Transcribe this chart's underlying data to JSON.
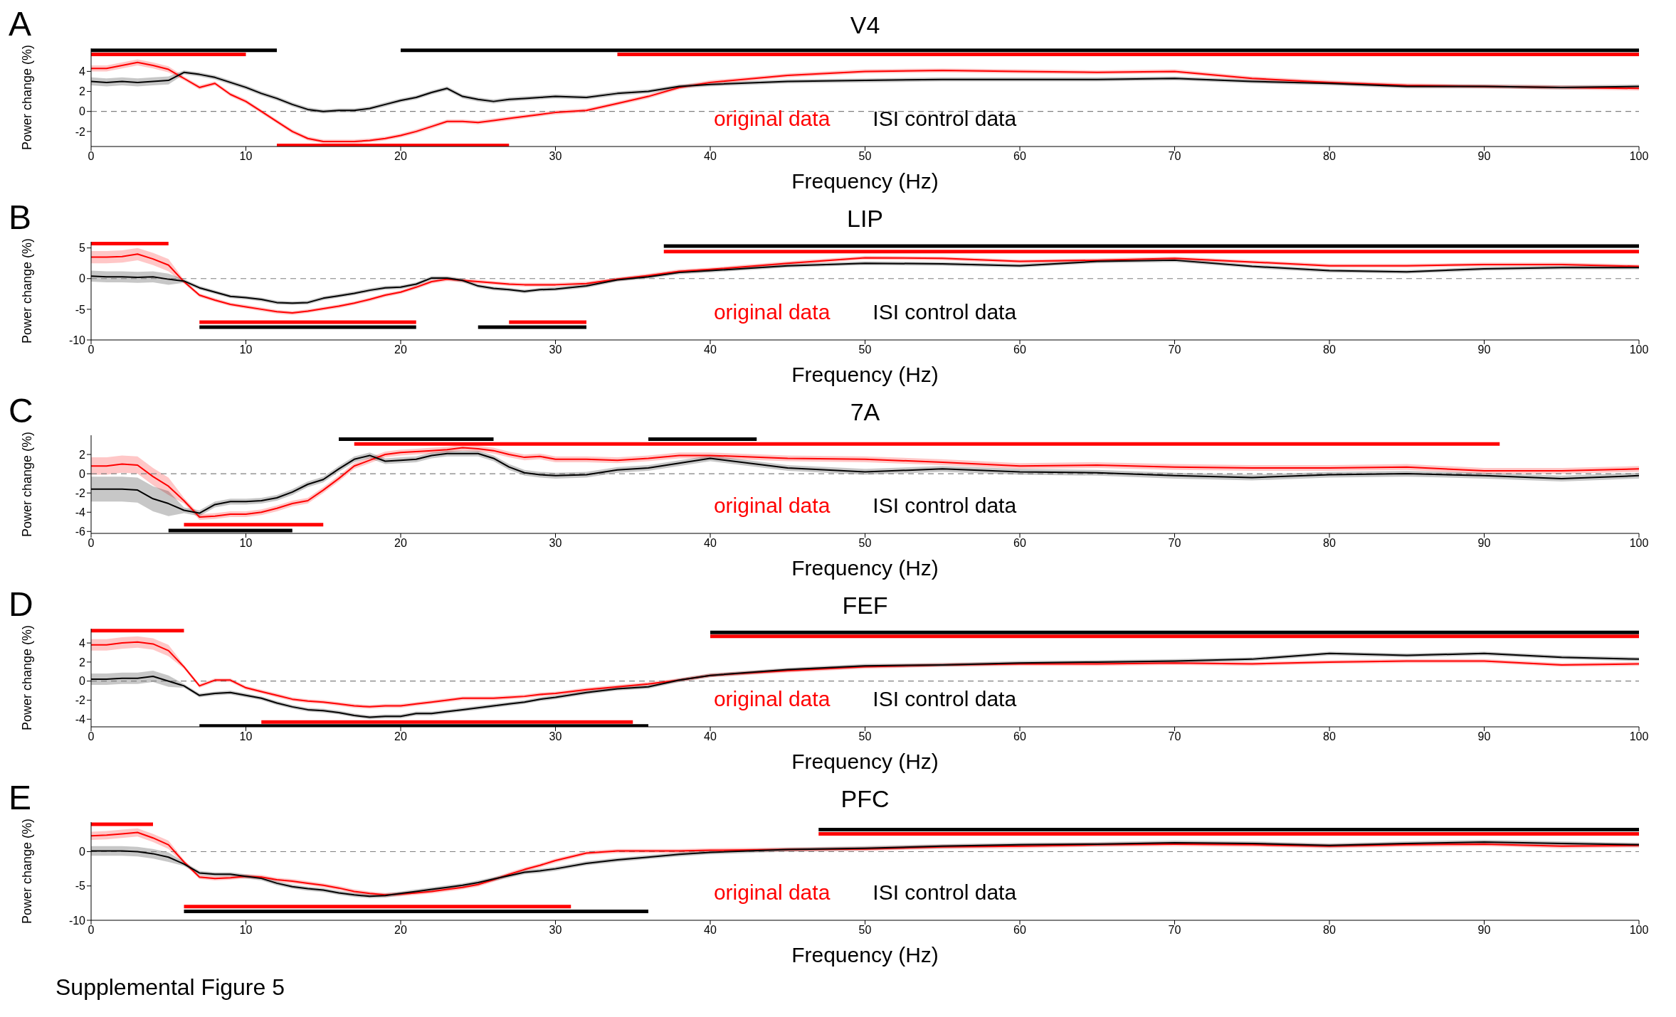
{
  "chart_data": [
    {
      "type": "line",
      "title": "V4",
      "xlabel": "Frequency (Hz)",
      "ylabel": "Power change (%)",
      "annotations": [
        "A"
      ],
      "legend": "bottom",
      "xlim": [
        0,
        100
      ],
      "xticks": [
        0,
        10,
        20,
        30,
        40,
        50,
        60,
        70,
        80,
        90,
        100
      ],
      "ylim": [
        -3.5,
        6.3
      ],
      "yticks": [
        -2,
        0,
        2,
        4
      ],
      "grid": false,
      "ref_lines": [
        {
          "axis": "y",
          "value": 0,
          "color": "#808080",
          "line_style": "dashed"
        }
      ],
      "x": [
        0,
        1,
        2,
        3,
        4,
        5,
        6,
        7,
        8,
        9,
        10,
        11,
        12,
        13,
        14,
        15,
        16,
        17,
        18,
        19,
        20,
        21,
        22,
        23,
        24,
        25,
        26,
        27,
        28,
        29,
        30,
        32,
        34,
        36,
        38,
        40,
        45,
        50,
        55,
        60,
        65,
        70,
        75,
        80,
        85,
        90,
        95,
        100
      ],
      "series": [
        {
          "name": "original data",
          "color": "#ff0000",
          "values": [
            4.3,
            4.3,
            4.6,
            4.9,
            4.6,
            4.2,
            3.3,
            2.4,
            2.8,
            1.7,
            1.0,
            0.0,
            -1.0,
            -2.0,
            -2.7,
            -3.0,
            -3.0,
            -3.0,
            -2.9,
            -2.7,
            -2.4,
            -2.0,
            -1.5,
            -1.0,
            -1.0,
            -1.1,
            -0.9,
            -0.7,
            -0.5,
            -0.3,
            -0.1,
            0.1,
            0.8,
            1.5,
            2.4,
            2.9,
            3.6,
            4.0,
            4.1,
            4.0,
            3.9,
            4.0,
            3.3,
            2.9,
            2.6,
            2.5,
            2.4,
            2.3
          ],
          "lower": [
            4.0,
            4.0,
            4.3,
            4.6,
            4.3,
            3.9,
            3.1,
            2.2,
            2.6,
            1.5,
            0.8,
            -0.2,
            -1.2,
            -2.2,
            -2.9,
            -3.2,
            -3.2,
            -3.2,
            -3.1,
            -2.9,
            -2.6,
            -2.2,
            -1.7,
            -1.2,
            -1.2,
            -1.3,
            -1.1,
            -0.9,
            -0.7,
            -0.5,
            -0.3,
            -0.1,
            0.6,
            1.3,
            2.2,
            2.7,
            3.4,
            3.8,
            3.9,
            3.8,
            3.7,
            3.8,
            3.1,
            2.7,
            2.4,
            2.3,
            2.2,
            2.1
          ],
          "upper": [
            4.6,
            4.6,
            4.9,
            5.2,
            4.9,
            4.5,
            3.5,
            2.6,
            3.0,
            1.9,
            1.2,
            0.2,
            -0.8,
            -1.8,
            -2.5,
            -2.8,
            -2.8,
            -2.8,
            -2.7,
            -2.5,
            -2.2,
            -1.8,
            -1.3,
            -0.8,
            -0.8,
            -0.9,
            -0.7,
            -0.5,
            -0.3,
            -0.1,
            0.1,
            0.3,
            1.0,
            1.7,
            2.6,
            3.1,
            3.8,
            4.2,
            4.3,
            4.2,
            4.1,
            4.2,
            3.5,
            3.1,
            2.8,
            2.7,
            2.6,
            2.5
          ]
        },
        {
          "name": "ISI control data",
          "color": "#000000",
          "values": [
            3.0,
            2.9,
            3.0,
            2.9,
            3.0,
            3.1,
            3.9,
            3.7,
            3.4,
            2.9,
            2.4,
            1.8,
            1.3,
            0.7,
            0.2,
            0.0,
            0.1,
            0.1,
            0.3,
            0.7,
            1.1,
            1.4,
            1.9,
            2.3,
            1.5,
            1.2,
            1.0,
            1.2,
            1.3,
            1.4,
            1.5,
            1.4,
            1.8,
            2.0,
            2.5,
            2.7,
            3.0,
            3.1,
            3.2,
            3.2,
            3.2,
            3.3,
            3.0,
            2.8,
            2.5,
            2.5,
            2.4,
            2.5
          ],
          "lower": [
            2.6,
            2.5,
            2.6,
            2.5,
            2.6,
            2.7,
            3.7,
            3.5,
            3.2,
            2.7,
            2.2,
            1.6,
            1.1,
            0.5,
            0.0,
            -0.2,
            -0.1,
            -0.1,
            0.1,
            0.5,
            0.9,
            1.2,
            1.7,
            2.1,
            1.3,
            1.0,
            0.8,
            1.0,
            1.1,
            1.2,
            1.3,
            1.2,
            1.6,
            1.8,
            2.3,
            2.5,
            2.8,
            2.9,
            3.0,
            3.0,
            3.0,
            3.1,
            2.8,
            2.6,
            2.3,
            2.3,
            2.2,
            2.3
          ],
          "upper": [
            3.4,
            3.3,
            3.4,
            3.3,
            3.4,
            3.5,
            4.1,
            3.9,
            3.6,
            3.1,
            2.6,
            2.0,
            1.5,
            0.9,
            0.4,
            0.2,
            0.3,
            0.3,
            0.5,
            0.9,
            1.3,
            1.6,
            2.1,
            2.5,
            1.7,
            1.4,
            1.2,
            1.4,
            1.5,
            1.6,
            1.7,
            1.6,
            2.0,
            2.2,
            2.7,
            2.9,
            3.2,
            3.3,
            3.4,
            3.4,
            3.4,
            3.5,
            3.2,
            3.0,
            2.7,
            2.7,
            2.6,
            2.7
          ]
        },
        {
          "type": "line",
          "color": "#000000",
          "x": [
            0,
            12
          ],
          "values": [
            6.1,
            6.1
          ]
        },
        {
          "type": "line",
          "color": "#000000",
          "x": [
            20,
            100
          ],
          "values": [
            6.1,
            6.1
          ]
        },
        {
          "type": "line",
          "color": "#ff0000",
          "x": [
            0,
            10
          ],
          "values": [
            5.7,
            5.7
          ]
        },
        {
          "type": "line",
          "color": "#ff0000",
          "x": [
            34,
            100
          ],
          "values": [
            5.7,
            5.7
          ]
        },
        {
          "type": "line",
          "color": "#ff0000",
          "x": [
            12,
            27
          ],
          "values": [
            -3.4,
            -3.4
          ]
        }
      ]
    },
    {
      "type": "line",
      "title": "LIP",
      "xlabel": "Frequency (Hz)",
      "ylabel": "Power change (%)",
      "annotations": [
        "B"
      ],
      "legend": "bottom",
      "xlim": [
        0,
        100
      ],
      "xticks": [
        0,
        10,
        20,
        30,
        40,
        50,
        60,
        70,
        80,
        90,
        100
      ],
      "ylim": [
        -10,
        6
      ],
      "yticks": [
        -10,
        -5,
        0,
        5
      ],
      "grid": false,
      "ref_lines": [
        {
          "axis": "y",
          "value": 0,
          "color": "#808080",
          "line_style": "dashed"
        }
      ],
      "x": [
        0,
        1,
        2,
        3,
        4,
        5,
        6,
        7,
        8,
        9,
        10,
        11,
        12,
        13,
        14,
        15,
        16,
        17,
        18,
        19,
        20,
        21,
        22,
        23,
        24,
        25,
        26,
        27,
        28,
        29,
        30,
        32,
        34,
        36,
        38,
        40,
        45,
        50,
        55,
        60,
        65,
        70,
        75,
        80,
        85,
        90,
        95,
        100
      ],
      "series": [
        {
          "name": "original data",
          "color": "#ff0000",
          "values": [
            3.5,
            3.5,
            3.6,
            4.0,
            3.2,
            2.2,
            -0.5,
            -2.7,
            -3.5,
            -4.2,
            -4.6,
            -5.0,
            -5.4,
            -5.6,
            -5.3,
            -4.9,
            -4.5,
            -4.0,
            -3.4,
            -2.7,
            -2.2,
            -1.4,
            -0.5,
            -0.1,
            -0.3,
            -0.5,
            -0.7,
            -0.9,
            -1.0,
            -1.0,
            -1.0,
            -0.8,
            -0.1,
            0.5,
            1.2,
            1.5,
            2.5,
            3.4,
            3.3,
            2.8,
            3.0,
            3.3,
            2.7,
            2.1,
            2.1,
            2.3,
            2.3,
            2.0
          ],
          "lower": [
            2.5,
            2.5,
            2.6,
            3.0,
            2.2,
            1.2,
            -0.8,
            -3.0,
            -3.8,
            -4.5,
            -4.9,
            -5.3,
            -5.7,
            -5.9,
            -5.6,
            -5.2,
            -4.8,
            -4.3,
            -3.7,
            -3.0,
            -2.5,
            -1.7,
            -0.8,
            -0.4,
            -0.6,
            -0.8,
            -1.0,
            -1.2,
            -1.3,
            -1.3,
            -1.3,
            -1.1,
            -0.4,
            0.2,
            0.9,
            1.2,
            2.2,
            3.1,
            3.0,
            2.5,
            2.7,
            3.0,
            2.4,
            1.8,
            1.8,
            2.0,
            2.0,
            1.7
          ],
          "upper": [
            4.5,
            4.5,
            4.6,
            5.0,
            4.2,
            3.2,
            -0.2,
            -2.4,
            -3.2,
            -3.9,
            -4.3,
            -4.7,
            -5.1,
            -5.3,
            -5.0,
            -4.6,
            -4.2,
            -3.7,
            -3.1,
            -2.4,
            -1.9,
            -1.1,
            -0.2,
            0.2,
            0.0,
            -0.2,
            -0.4,
            -0.6,
            -0.7,
            -0.7,
            -0.7,
            -0.5,
            0.2,
            0.8,
            1.5,
            1.8,
            2.8,
            3.7,
            3.6,
            3.1,
            3.3,
            3.6,
            3.0,
            2.4,
            2.4,
            2.6,
            2.6,
            2.3
          ]
        },
        {
          "name": "ISI control data",
          "color": "#000000",
          "values": [
            0.4,
            0.3,
            0.3,
            0.2,
            0.3,
            -0.1,
            -0.4,
            -1.5,
            -2.2,
            -2.9,
            -3.1,
            -3.4,
            -3.9,
            -4.0,
            -3.9,
            -3.2,
            -2.8,
            -2.4,
            -1.9,
            -1.5,
            -1.4,
            -0.9,
            0.1,
            0.1,
            -0.3,
            -1.2,
            -1.6,
            -1.8,
            -2.1,
            -1.8,
            -1.7,
            -1.2,
            -0.2,
            0.3,
            1.0,
            1.3,
            2.1,
            2.5,
            2.4,
            2.1,
            2.8,
            3.0,
            2.0,
            1.3,
            1.1,
            1.6,
            1.8,
            1.8
          ],
          "lower": [
            -0.5,
            -0.6,
            -0.6,
            -0.7,
            -0.6,
            -1.0,
            -0.7,
            -1.8,
            -2.5,
            -3.2,
            -3.4,
            -3.7,
            -4.2,
            -4.3,
            -4.2,
            -3.5,
            -3.1,
            -2.7,
            -2.2,
            -1.8,
            -1.7,
            -1.2,
            -0.2,
            -0.2,
            -0.6,
            -1.5,
            -1.9,
            -2.1,
            -2.4,
            -2.1,
            -2.0,
            -1.5,
            -0.5,
            0.0,
            0.7,
            1.0,
            1.8,
            2.2,
            2.1,
            1.8,
            2.5,
            2.7,
            1.7,
            1.0,
            0.8,
            1.3,
            1.5,
            1.5
          ],
          "upper": [
            1.3,
            1.2,
            1.2,
            1.1,
            1.2,
            0.8,
            -0.1,
            -1.2,
            -1.9,
            -2.6,
            -2.8,
            -3.1,
            -3.6,
            -3.7,
            -3.6,
            -2.9,
            -2.5,
            -2.1,
            -1.6,
            -1.2,
            -1.1,
            -0.6,
            0.4,
            0.4,
            0.0,
            -0.9,
            -1.3,
            -1.5,
            -1.8,
            -1.5,
            -1.4,
            -0.9,
            0.1,
            0.6,
            1.3,
            1.6,
            2.4,
            2.8,
            2.7,
            2.4,
            3.1,
            3.3,
            2.3,
            1.6,
            1.4,
            1.9,
            2.1,
            2.1
          ]
        },
        {
          "type": "line",
          "color": "#ff0000",
          "x": [
            0,
            5
          ],
          "values": [
            5.7,
            5.7
          ]
        },
        {
          "type": "line",
          "color": "#000000",
          "x": [
            37,
            100
          ],
          "values": [
            5.3,
            5.3
          ]
        },
        {
          "type": "line",
          "color": "#ff0000",
          "x": [
            37,
            100
          ],
          "values": [
            4.4,
            4.4
          ]
        },
        {
          "type": "line",
          "color": "#ff0000",
          "x": [
            7,
            21
          ],
          "values": [
            -7.1,
            -7.1
          ]
        },
        {
          "type": "line",
          "color": "#000000",
          "x": [
            7,
            21
          ],
          "values": [
            -7.9,
            -7.9
          ]
        },
        {
          "type": "line",
          "color": "#000000",
          "x": [
            25,
            32
          ],
          "values": [
            -7.9,
            -7.9
          ]
        },
        {
          "type": "line",
          "color": "#ff0000",
          "x": [
            27,
            32
          ],
          "values": [
            -7.1,
            -7.1
          ]
        }
      ]
    },
    {
      "type": "line",
      "title": "7A",
      "xlabel": "Frequency (Hz)",
      "ylabel": "Power change (%)",
      "annotations": [
        "C"
      ],
      "legend": "bottom",
      "xlim": [
        0,
        100
      ],
      "xticks": [
        0,
        10,
        20,
        30,
        40,
        50,
        60,
        70,
        80,
        90,
        100
      ],
      "ylim": [
        -6.2,
        4
      ],
      "yticks": [
        -6,
        -4,
        -2,
        0,
        2
      ],
      "grid": false,
      "ref_lines": [
        {
          "axis": "y",
          "value": 0,
          "color": "#808080",
          "line_style": "dashed"
        }
      ],
      "x": [
        0,
        1,
        2,
        3,
        4,
        5,
        6,
        7,
        8,
        9,
        10,
        11,
        12,
        13,
        14,
        15,
        16,
        17,
        18,
        19,
        20,
        21,
        22,
        23,
        24,
        25,
        26,
        27,
        28,
        29,
        30,
        32,
        34,
        36,
        38,
        40,
        45,
        50,
        55,
        60,
        65,
        70,
        75,
        80,
        85,
        90,
        95,
        100
      ],
      "series": [
        {
          "name": "original data",
          "color": "#ff0000",
          "values": [
            0.8,
            0.8,
            1.0,
            0.9,
            -0.3,
            -1.3,
            -2.8,
            -4.5,
            -4.4,
            -4.2,
            -4.2,
            -4.0,
            -3.6,
            -3.1,
            -2.8,
            -1.7,
            -0.5,
            0.8,
            1.4,
            2.0,
            2.2,
            2.3,
            2.4,
            2.5,
            2.7,
            2.6,
            2.4,
            2.0,
            1.7,
            1.8,
            1.5,
            1.5,
            1.4,
            1.6,
            1.9,
            1.9,
            1.6,
            1.5,
            1.2,
            0.8,
            0.9,
            0.7,
            0.6,
            0.6,
            0.7,
            0.3,
            0.3,
            0.5
          ],
          "lower": [
            -0.1,
            -0.1,
            0.1,
            0.0,
            -1.2,
            -2.2,
            -3.1,
            -4.8,
            -4.7,
            -4.5,
            -4.5,
            -4.3,
            -3.9,
            -3.4,
            -3.1,
            -2.0,
            -0.8,
            0.5,
            1.1,
            1.7,
            1.9,
            2.0,
            2.1,
            2.2,
            2.4,
            2.3,
            2.1,
            1.7,
            1.4,
            1.5,
            1.2,
            1.2,
            1.1,
            1.3,
            1.6,
            1.6,
            1.3,
            1.2,
            0.9,
            0.5,
            0.6,
            0.4,
            0.3,
            0.3,
            0.4,
            0.0,
            0.0,
            0.2
          ],
          "upper": [
            1.7,
            1.7,
            1.9,
            1.8,
            0.6,
            -0.4,
            -2.5,
            -4.2,
            -4.1,
            -3.9,
            -3.9,
            -3.7,
            -3.3,
            -2.8,
            -2.5,
            -1.4,
            -0.2,
            1.1,
            1.7,
            2.3,
            2.5,
            2.6,
            2.7,
            2.8,
            3.0,
            2.9,
            2.7,
            2.3,
            2.0,
            2.1,
            1.8,
            1.8,
            1.7,
            1.9,
            2.2,
            2.2,
            1.9,
            1.8,
            1.5,
            1.1,
            1.2,
            1.0,
            0.9,
            0.9,
            1.0,
            0.6,
            0.6,
            0.8
          ]
        },
        {
          "name": "ISI control data",
          "color": "#000000",
          "values": [
            -1.6,
            -1.6,
            -1.6,
            -1.7,
            -2.6,
            -3.1,
            -3.8,
            -4.1,
            -3.2,
            -2.9,
            -2.9,
            -2.8,
            -2.5,
            -1.9,
            -1.1,
            -0.6,
            0.5,
            1.5,
            1.9,
            1.3,
            1.4,
            1.5,
            1.9,
            2.1,
            2.1,
            2.1,
            1.6,
            0.7,
            0.1,
            -0.1,
            -0.2,
            -0.1,
            0.4,
            0.6,
            1.1,
            1.6,
            0.6,
            0.2,
            0.5,
            0.2,
            0.1,
            -0.2,
            -0.4,
            -0.1,
            0.0,
            -0.2,
            -0.5,
            -0.2
          ],
          "lower": [
            -2.9,
            -2.9,
            -2.9,
            -3.0,
            -3.9,
            -4.4,
            -4.1,
            -4.4,
            -3.5,
            -3.2,
            -3.2,
            -3.1,
            -2.8,
            -2.2,
            -1.4,
            -0.9,
            0.2,
            1.2,
            1.6,
            1.0,
            1.1,
            1.2,
            1.6,
            1.8,
            1.8,
            1.8,
            1.3,
            0.4,
            -0.2,
            -0.4,
            -0.5,
            -0.4,
            0.1,
            0.3,
            0.8,
            1.3,
            0.3,
            -0.1,
            0.2,
            -0.1,
            -0.2,
            -0.5,
            -0.7,
            -0.4,
            -0.3,
            -0.5,
            -0.8,
            -0.5
          ],
          "upper": [
            -0.3,
            -0.3,
            -0.3,
            -0.4,
            -1.3,
            -1.8,
            -3.5,
            -3.8,
            -2.9,
            -2.6,
            -2.6,
            -2.5,
            -2.2,
            -1.6,
            -0.8,
            -0.3,
            0.8,
            1.8,
            2.2,
            1.6,
            1.7,
            1.8,
            2.2,
            2.4,
            2.4,
            2.4,
            1.9,
            1.0,
            0.4,
            0.2,
            0.1,
            0.2,
            0.7,
            0.9,
            1.4,
            1.9,
            0.9,
            0.5,
            0.8,
            0.5,
            0.4,
            0.1,
            -0.1,
            0.2,
            0.3,
            0.1,
            -0.2,
            0.1
          ]
        },
        {
          "type": "line",
          "color": "#000000",
          "x": [
            16,
            26
          ],
          "values": [
            3.6,
            3.6
          ]
        },
        {
          "type": "line",
          "color": "#ff0000",
          "x": [
            17,
            91
          ],
          "values": [
            3.1,
            3.1
          ]
        },
        {
          "type": "line",
          "color": "#000000",
          "x": [
            36,
            43
          ],
          "values": [
            3.6,
            3.6
          ]
        },
        {
          "type": "line",
          "color": "#ff0000",
          "x": [
            6,
            15
          ],
          "values": [
            -5.3,
            -5.3
          ]
        },
        {
          "type": "line",
          "color": "#000000",
          "x": [
            5,
            13
          ],
          "values": [
            -5.9,
            -5.9
          ]
        }
      ]
    },
    {
      "type": "line",
      "title": "FEF",
      "xlabel": "Frequency (Hz)",
      "ylabel": "Power change (%)",
      "annotations": [
        "D"
      ],
      "legend": "bottom",
      "xlim": [
        0,
        100
      ],
      "xticks": [
        0,
        10,
        20,
        30,
        40,
        50,
        60,
        70,
        80,
        90,
        100
      ],
      "ylim": [
        -4.8,
        5.5
      ],
      "yticks": [
        -4,
        -2,
        0,
        2,
        4
      ],
      "grid": false,
      "ref_lines": [
        {
          "axis": "y",
          "value": 0,
          "color": "#808080",
          "line_style": "dashed"
        }
      ],
      "x": [
        0,
        1,
        2,
        3,
        4,
        5,
        6,
        7,
        8,
        9,
        10,
        11,
        12,
        13,
        14,
        15,
        16,
        17,
        18,
        19,
        20,
        21,
        22,
        23,
        24,
        25,
        26,
        27,
        28,
        29,
        30,
        32,
        34,
        36,
        38,
        40,
        45,
        50,
        55,
        60,
        65,
        70,
        75,
        80,
        85,
        90,
        95,
        100
      ],
      "series": [
        {
          "name": "original data",
          "color": "#ff0000",
          "values": [
            3.8,
            3.8,
            4.0,
            4.1,
            3.9,
            3.2,
            1.5,
            -0.5,
            0.1,
            0.1,
            -0.7,
            -1.1,
            -1.5,
            -1.9,
            -2.1,
            -2.2,
            -2.4,
            -2.6,
            -2.7,
            -2.6,
            -2.6,
            -2.4,
            -2.2,
            -2.0,
            -1.8,
            -1.8,
            -1.8,
            -1.7,
            -1.6,
            -1.4,
            -1.3,
            -0.9,
            -0.6,
            -0.3,
            0.1,
            0.6,
            1.1,
            1.5,
            1.7,
            1.8,
            1.8,
            1.9,
            1.8,
            2.0,
            2.1,
            2.1,
            1.7,
            1.8
          ],
          "lower": [
            3.2,
            3.2,
            3.4,
            3.5,
            3.3,
            2.6,
            1.3,
            -0.7,
            -0.1,
            -0.1,
            -0.9,
            -1.3,
            -1.7,
            -2.1,
            -2.3,
            -2.4,
            -2.6,
            -2.8,
            -2.9,
            -2.8,
            -2.8,
            -2.6,
            -2.4,
            -2.2,
            -2.0,
            -2.0,
            -2.0,
            -1.9,
            -1.8,
            -1.6,
            -1.5,
            -1.1,
            -0.8,
            -0.5,
            -0.1,
            0.4,
            0.9,
            1.3,
            1.5,
            1.6,
            1.6,
            1.7,
            1.6,
            1.8,
            1.9,
            1.9,
            1.5,
            1.6
          ],
          "upper": [
            4.4,
            4.4,
            4.6,
            4.7,
            4.5,
            3.8,
            1.7,
            -0.3,
            0.3,
            0.3,
            -0.5,
            -0.9,
            -1.3,
            -1.7,
            -1.9,
            -2.0,
            -2.2,
            -2.4,
            -2.5,
            -2.4,
            -2.4,
            -2.2,
            -2.0,
            -1.8,
            -1.6,
            -1.6,
            -1.6,
            -1.5,
            -1.4,
            -1.2,
            -1.1,
            -0.7,
            -0.4,
            -0.1,
            0.3,
            0.8,
            1.3,
            1.7,
            1.9,
            2.0,
            2.0,
            2.1,
            2.0,
            2.2,
            2.3,
            2.3,
            1.9,
            2.0
          ]
        },
        {
          "name": "ISI control data",
          "color": "#000000",
          "values": [
            0.2,
            0.2,
            0.3,
            0.3,
            0.5,
            0.0,
            -0.5,
            -1.5,
            -1.3,
            -1.2,
            -1.5,
            -1.8,
            -2.3,
            -2.7,
            -3.0,
            -3.1,
            -3.3,
            -3.6,
            -3.8,
            -3.7,
            -3.7,
            -3.4,
            -3.4,
            -3.2,
            -3.0,
            -2.8,
            -2.6,
            -2.4,
            -2.2,
            -1.9,
            -1.7,
            -1.2,
            -0.8,
            -0.6,
            0.1,
            0.6,
            1.2,
            1.6,
            1.7,
            1.9,
            2.0,
            2.1,
            2.3,
            2.9,
            2.7,
            2.9,
            2.5,
            2.3
          ],
          "lower": [
            -0.4,
            -0.4,
            -0.3,
            -0.3,
            -0.1,
            -0.6,
            -0.7,
            -1.7,
            -1.5,
            -1.4,
            -1.7,
            -2.0,
            -2.5,
            -2.9,
            -3.2,
            -3.3,
            -3.5,
            -3.8,
            -4.0,
            -3.9,
            -3.9,
            -3.6,
            -3.6,
            -3.4,
            -3.2,
            -3.0,
            -2.8,
            -2.6,
            -2.4,
            -2.1,
            -1.9,
            -1.4,
            -1.0,
            -0.8,
            -0.1,
            0.4,
            1.0,
            1.4,
            1.5,
            1.7,
            1.8,
            1.9,
            2.1,
            2.7,
            2.5,
            2.7,
            2.3,
            2.1
          ],
          "upper": [
            0.8,
            0.8,
            0.9,
            0.9,
            1.1,
            0.6,
            -0.3,
            -1.3,
            -1.1,
            -1.0,
            -1.3,
            -1.6,
            -2.1,
            -2.5,
            -2.8,
            -2.9,
            -3.1,
            -3.4,
            -3.6,
            -3.5,
            -3.5,
            -3.2,
            -3.2,
            -3.0,
            -2.8,
            -2.6,
            -2.4,
            -2.2,
            -2.0,
            -1.7,
            -1.5,
            -1.0,
            -0.6,
            -0.4,
            0.3,
            0.8,
            1.4,
            1.8,
            1.9,
            2.1,
            2.2,
            2.3,
            2.5,
            3.1,
            2.9,
            3.1,
            2.7,
            2.5
          ]
        },
        {
          "type": "line",
          "color": "#ff0000",
          "x": [
            0,
            6
          ],
          "values": [
            5.3,
            5.3
          ]
        },
        {
          "type": "line",
          "color": "#000000",
          "x": [
            40,
            100
          ],
          "values": [
            5.1,
            5.1
          ]
        },
        {
          "type": "line",
          "color": "#ff0000",
          "x": [
            40,
            100
          ],
          "values": [
            4.7,
            4.7
          ]
        },
        {
          "type": "line",
          "color": "#ff0000",
          "x": [
            11,
            35
          ],
          "values": [
            -4.3,
            -4.3
          ]
        },
        {
          "type": "line",
          "color": "#000000",
          "x": [
            7,
            36
          ],
          "values": [
            -4.7,
            -4.7
          ]
        }
      ]
    },
    {
      "type": "line",
      "title": "PFC",
      "xlabel": "Frequency (Hz)",
      "ylabel": "Power change (%)",
      "annotations": [
        "E",
        "Supplemental Figure 5"
      ],
      "legend": "bottom",
      "xlim": [
        0,
        100
      ],
      "xticks": [
        0,
        10,
        20,
        30,
        40,
        50,
        60,
        70,
        80,
        90,
        100
      ],
      "ylim": [
        -10,
        4.3
      ],
      "yticks": [
        -10,
        -5,
        0
      ],
      "grid": false,
      "ref_lines": [
        {
          "axis": "y",
          "value": 0,
          "color": "#808080",
          "line_style": "dashed"
        }
      ],
      "x": [
        0,
        1,
        2,
        3,
        4,
        5,
        6,
        7,
        8,
        9,
        10,
        11,
        12,
        13,
        14,
        15,
        16,
        17,
        18,
        19,
        20,
        21,
        22,
        23,
        24,
        25,
        26,
        27,
        28,
        29,
        30,
        32,
        34,
        36,
        38,
        40,
        45,
        50,
        55,
        60,
        65,
        70,
        75,
        80,
        85,
        90,
        95,
        100
      ],
      "series": [
        {
          "name": "original data",
          "color": "#ff0000",
          "values": [
            2.3,
            2.4,
            2.6,
            2.8,
            2.0,
            1.0,
            -1.5,
            -3.7,
            -3.9,
            -3.8,
            -3.6,
            -3.7,
            -4.1,
            -4.3,
            -4.6,
            -4.9,
            -5.3,
            -5.8,
            -6.1,
            -6.3,
            -6.2,
            -6.0,
            -5.8,
            -5.5,
            -5.2,
            -4.8,
            -4.1,
            -3.3,
            -2.6,
            -2.0,
            -1.3,
            -0.2,
            0.1,
            0.1,
            0.1,
            0.2,
            0.3,
            0.4,
            0.7,
            0.8,
            1.0,
            1.1,
            1.0,
            0.8,
            1.0,
            1.1,
            0.8,
            0.9
          ],
          "lower": [
            1.7,
            1.8,
            2.0,
            2.2,
            1.4,
            0.4,
            -1.8,
            -4.0,
            -4.2,
            -4.1,
            -3.9,
            -4.0,
            -4.4,
            -4.6,
            -4.9,
            -5.2,
            -5.6,
            -6.1,
            -6.4,
            -6.6,
            -6.5,
            -6.3,
            -6.1,
            -5.8,
            -5.5,
            -5.1,
            -4.4,
            -3.6,
            -2.9,
            -2.3,
            -1.6,
            -0.5,
            -0.2,
            -0.2,
            -0.2,
            -0.1,
            0.0,
            0.1,
            0.4,
            0.5,
            0.7,
            0.8,
            0.7,
            0.5,
            0.7,
            0.8,
            0.5,
            0.6
          ],
          "upper": [
            2.9,
            3.0,
            3.2,
            3.4,
            2.6,
            1.6,
            -1.2,
            -3.4,
            -3.6,
            -3.5,
            -3.3,
            -3.4,
            -3.8,
            -4.0,
            -4.3,
            -4.6,
            -5.0,
            -5.5,
            -5.8,
            -6.0,
            -5.9,
            -5.7,
            -5.5,
            -5.2,
            -4.9,
            -4.5,
            -3.8,
            -3.0,
            -2.3,
            -1.7,
            -1.0,
            0.1,
            0.4,
            0.4,
            0.4,
            0.5,
            0.6,
            0.7,
            1.0,
            1.1,
            1.3,
            1.4,
            1.3,
            1.1,
            1.3,
            1.4,
            1.1,
            1.2
          ]
        },
        {
          "name": "ISI control data",
          "color": "#000000",
          "values": [
            0.1,
            0.1,
            0.1,
            0.0,
            -0.3,
            -0.8,
            -1.8,
            -3.1,
            -3.3,
            -3.3,
            -3.6,
            -3.9,
            -4.6,
            -5.1,
            -5.4,
            -5.6,
            -6.0,
            -6.3,
            -6.5,
            -6.4,
            -6.1,
            -5.8,
            -5.5,
            -5.2,
            -4.9,
            -4.5,
            -4.0,
            -3.5,
            -3.0,
            -2.8,
            -2.5,
            -1.7,
            -1.2,
            -0.8,
            -0.4,
            -0.1,
            0.3,
            0.5,
            0.8,
            1.0,
            1.1,
            1.3,
            1.2,
            0.9,
            1.2,
            1.4,
            1.2,
            1.0
          ],
          "lower": [
            -0.6,
            -0.6,
            -0.6,
            -0.7,
            -1.0,
            -1.5,
            -2.1,
            -3.4,
            -3.6,
            -3.6,
            -3.9,
            -4.2,
            -4.9,
            -5.4,
            -5.7,
            -5.9,
            -6.3,
            -6.6,
            -6.8,
            -6.7,
            -6.4,
            -6.1,
            -5.8,
            -5.5,
            -5.2,
            -4.8,
            -4.3,
            -3.8,
            -3.3,
            -3.1,
            -2.8,
            -2.0,
            -1.5,
            -1.1,
            -0.7,
            -0.4,
            0.0,
            0.2,
            0.5,
            0.7,
            0.8,
            1.0,
            0.9,
            0.6,
            0.9,
            1.1,
            0.9,
            0.7
          ],
          "upper": [
            0.8,
            0.8,
            0.8,
            0.7,
            0.4,
            -0.1,
            -1.5,
            -2.8,
            -3.0,
            -3.0,
            -3.3,
            -3.6,
            -4.3,
            -4.8,
            -5.1,
            -5.3,
            -5.7,
            -6.0,
            -6.2,
            -6.1,
            -5.8,
            -5.5,
            -5.2,
            -4.9,
            -4.6,
            -4.2,
            -3.7,
            -3.2,
            -2.7,
            -2.5,
            -2.2,
            -1.4,
            -0.9,
            -0.5,
            -0.1,
            0.2,
            0.6,
            0.8,
            1.1,
            1.3,
            1.4,
            1.6,
            1.5,
            1.2,
            1.5,
            1.7,
            1.5,
            1.3
          ]
        },
        {
          "type": "line",
          "color": "#ff0000",
          "x": [
            0,
            4
          ],
          "values": [
            4.0,
            4.0
          ]
        },
        {
          "type": "line",
          "color": "#000000",
          "x": [
            47,
            100
          ],
          "values": [
            3.2,
            3.2
          ]
        },
        {
          "type": "line",
          "color": "#ff0000",
          "x": [
            47,
            100
          ],
          "values": [
            2.6,
            2.6
          ]
        },
        {
          "type": "line",
          "color": "#ff0000",
          "x": [
            6,
            31
          ],
          "values": [
            -8.0,
            -8.0
          ]
        },
        {
          "type": "line",
          "color": "#000000",
          "x": [
            6,
            36
          ],
          "values": [
            -8.7,
            -8.7
          ]
        }
      ]
    }
  ]
}
